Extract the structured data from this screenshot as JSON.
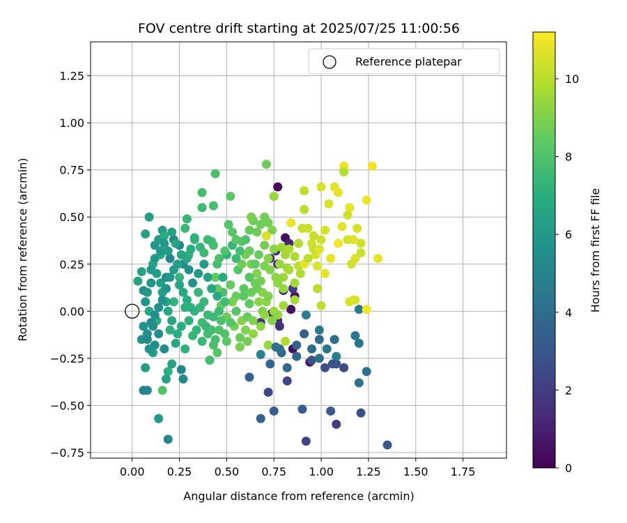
{
  "chart_data": {
    "type": "scatter",
    "title": "FOV centre drift starting at 2025/07/25 11:00:56",
    "xlabel": "Angular distance from reference (arcmin)",
    "ylabel": "Rotation from reference (arcmin)",
    "xlim": [
      -0.22,
      1.98
    ],
    "ylim": [
      -0.78,
      1.43
    ],
    "xticks": [
      "0.00",
      "0.25",
      "0.50",
      "0.75",
      "1.00",
      "1.25",
      "1.50",
      "1.75"
    ],
    "yticks": [
      "1.25",
      "1.00",
      "0.75",
      "0.50",
      "0.25",
      "0.00",
      "−0.25",
      "−0.50",
      "−0.75"
    ],
    "grid": true,
    "legend": {
      "position": "top-right",
      "entries": [
        "Reference platepar"
      ]
    },
    "colorbar": {
      "label": "Hours from first FF file",
      "colormap": "viridis",
      "range": [
        0,
        11.2
      ],
      "ticks": [
        "0",
        "2",
        "4",
        "6",
        "8",
        "10"
      ]
    },
    "reference_point": {
      "x": 0.0,
      "y": 0.0,
      "label": "Reference platepar"
    },
    "points": [
      [
        0.77,
        0.66,
        0.3
      ],
      [
        0.84,
        0.01,
        0.4
      ],
      [
        0.86,
        0.08,
        0.6
      ],
      [
        0.81,
        0.39,
        0.4
      ],
      [
        0.85,
        -0.2,
        0.5
      ],
      [
        0.94,
        -0.27,
        0.7
      ],
      [
        0.77,
        0.25,
        0.9
      ],
      [
        0.73,
        0.28,
        1.0
      ],
      [
        0.83,
        0.36,
        1.1
      ],
      [
        0.8,
        0.11,
        1.2
      ],
      [
        0.77,
        -0.05,
        1.3
      ],
      [
        0.74,
        -0.01,
        1.4
      ],
      [
        0.78,
        -0.08,
        1.5
      ],
      [
        0.68,
        -0.06,
        1.6
      ],
      [
        0.76,
        0.32,
        1.7
      ],
      [
        0.85,
        0.12,
        1.8
      ],
      [
        1.08,
        -0.6,
        2.0
      ],
      [
        0.92,
        -0.69,
        2.2
      ],
      [
        0.82,
        -0.37,
        2.3
      ],
      [
        0.72,
        -0.43,
        2.4
      ],
      [
        1.12,
        -0.3,
        2.5
      ],
      [
        1.08,
        -0.28,
        2.6
      ],
      [
        1.02,
        -0.3,
        2.7
      ],
      [
        0.95,
        -0.26,
        2.8
      ],
      [
        1.21,
        -0.54,
        2.9
      ],
      [
        1.35,
        -0.71,
        3.0
      ],
      [
        1.05,
        -0.53,
        3.1
      ],
      [
        0.9,
        -0.52,
        3.2
      ],
      [
        0.75,
        -0.53,
        3.3
      ],
      [
        0.68,
        -0.57,
        3.4
      ],
      [
        0.62,
        -0.35,
        3.5
      ],
      [
        0.73,
        -0.28,
        3.6
      ],
      [
        0.78,
        -0.2,
        3.7
      ],
      [
        0.87,
        -0.24,
        3.8
      ],
      [
        0.99,
        -0.15,
        3.9
      ],
      [
        1.07,
        -0.15,
        4.0
      ],
      [
        1.2,
        -0.38,
        4.1
      ],
      [
        1.24,
        -0.32,
        4.2
      ],
      [
        1.2,
        -0.17,
        4.3
      ],
      [
        1.18,
        -0.13,
        4.4
      ],
      [
        0.99,
        -0.1,
        4.5
      ],
      [
        0.92,
        -0.02,
        4.6
      ],
      [
        1.2,
        0.01,
        4.7
      ],
      [
        1.08,
        -0.24,
        4.8
      ],
      [
        0.68,
        -0.23,
        4.9
      ],
      [
        0.08,
        -0.42,
        5.0
      ],
      [
        0.06,
        -0.42,
        5.0
      ],
      [
        0.19,
        -0.68,
        5.1
      ],
      [
        0.26,
        -0.31,
        5.2
      ],
      [
        0.27,
        -0.36,
        5.3
      ],
      [
        0.17,
        -0.2,
        5.4
      ],
      [
        0.12,
        -0.18,
        5.5
      ],
      [
        0.08,
        -0.12,
        5.6
      ],
      [
        0.06,
        0.11,
        5.7
      ],
      [
        0.1,
        0.15,
        5.8
      ],
      [
        0.12,
        0.35,
        5.9
      ],
      [
        0.14,
        0.38,
        6.0
      ],
      [
        0.16,
        0.43,
        6.1
      ],
      [
        0.09,
        0.5,
        6.2
      ],
      [
        0.07,
        0.41,
        6.3
      ],
      [
        0.05,
        0.21,
        6.4
      ],
      [
        0.03,
        0.16,
        6.5
      ],
      [
        0.09,
        0.0,
        6.6
      ],
      [
        0.11,
        0.25,
        6.7
      ],
      [
        0.15,
        0.3,
        6.8
      ],
      [
        0.17,
        0.4,
        6.9
      ],
      [
        0.13,
        -0.05,
        7.0
      ],
      [
        0.2,
        -0.1,
        7.1
      ],
      [
        0.22,
        0.05,
        7.2
      ],
      [
        0.25,
        0.18,
        7.3
      ],
      [
        0.3,
        0.3,
        7.4
      ],
      [
        0.33,
        0.38,
        7.5
      ],
      [
        0.38,
        0.31,
        7.6
      ],
      [
        0.42,
        0.37,
        7.7
      ],
      [
        0.45,
        0.25,
        7.8
      ],
      [
        0.48,
        0.1,
        7.9
      ],
      [
        0.14,
        -0.57,
        6.0
      ],
      [
        0.07,
        -0.3,
        6.2
      ],
      [
        0.11,
        -0.22,
        6.3
      ],
      [
        0.18,
        -0.36,
        6.4
      ],
      [
        0.21,
        -0.28,
        6.6
      ],
      [
        0.16,
        -0.42,
        8.1
      ],
      [
        0.19,
        -0.32,
        7.0
      ],
      [
        0.28,
        -0.2,
        7.2
      ],
      [
        0.32,
        -0.13,
        7.4
      ],
      [
        0.37,
        -0.06,
        7.6
      ],
      [
        0.41,
        -0.26,
        7.7
      ],
      [
        0.45,
        -0.22,
        8.2
      ],
      [
        0.44,
        0.73,
        7.9
      ],
      [
        0.37,
        0.63,
        7.8
      ],
      [
        0.37,
        0.55,
        7.6
      ],
      [
        0.43,
        0.56,
        7.8
      ],
      [
        0.29,
        0.49,
        7.4
      ],
      [
        0.28,
        0.44,
        7.5
      ],
      [
        0.51,
        0.46,
        8.1
      ],
      [
        0.52,
        0.61,
        8.3
      ],
      [
        0.53,
        0.42,
        8.2
      ],
      [
        0.58,
        0.37,
        8.4
      ],
      [
        0.62,
        0.32,
        8.5
      ],
      [
        0.64,
        0.48,
        8.6
      ],
      [
        0.66,
        0.42,
        8.7
      ],
      [
        0.7,
        0.5,
        8.8
      ],
      [
        0.71,
        0.78,
        8.7
      ],
      [
        0.72,
        0.47,
        8.8
      ],
      [
        0.74,
        0.43,
        9.0
      ],
      [
        0.56,
        0.22,
        8.2
      ],
      [
        0.59,
        0.12,
        8.3
      ],
      [
        0.62,
        0.04,
        8.4
      ],
      [
        0.65,
        0.15,
        8.6
      ],
      [
        0.68,
        0.16,
        8.8
      ],
      [
        0.7,
        0.24,
        8.9
      ],
      [
        0.72,
        0.28,
        9.1
      ],
      [
        0.75,
        0.33,
        9.2
      ],
      [
        0.75,
        0.61,
        9.4
      ],
      [
        0.79,
        0.34,
        9.5
      ],
      [
        0.82,
        0.23,
        9.6
      ],
      [
        0.71,
        0.4,
        10.6
      ],
      [
        0.91,
        0.54,
        10.0
      ],
      [
        0.91,
        0.64,
        10.1
      ],
      [
        0.84,
        0.47,
        10.9
      ],
      [
        0.86,
        0.29,
        9.8
      ],
      [
        0.88,
        0.24,
        10.0
      ],
      [
        0.9,
        0.44,
        10.2
      ],
      [
        0.93,
        0.44,
        10.3
      ],
      [
        0.95,
        0.36,
        10.4
      ],
      [
        0.97,
        0.3,
        10.5
      ],
      [
        0.98,
        0.12,
        10.0
      ],
      [
        1.0,
        0.03,
        10.1
      ],
      [
        1.0,
        0.66,
        10.5
      ],
      [
        1.04,
        0.57,
        10.6
      ],
      [
        1.07,
        0.66,
        10.7
      ],
      [
        1.09,
        0.63,
        10.8
      ],
      [
        1.12,
        0.77,
        10.9
      ],
      [
        1.12,
        0.75,
        11.0
      ],
      [
        1.15,
        0.55,
        10.8
      ],
      [
        1.17,
        0.38,
        10.7
      ],
      [
        1.18,
        0.28,
        10.6
      ],
      [
        1.19,
        0.44,
        10.5
      ],
      [
        1.21,
        0.36,
        10.4
      ],
      [
        1.21,
        0.31,
        10.3
      ],
      [
        1.24,
        0.59,
        10.9
      ],
      [
        1.27,
        0.77,
        11.0
      ],
      [
        1.3,
        0.28,
        10.8
      ],
      [
        1.24,
        0.01,
        11.0
      ],
      [
        1.17,
        0.06,
        10.7
      ],
      [
        1.15,
        0.05,
        10.6
      ],
      [
        1.12,
        0.74,
        9.9
      ],
      [
        1.14,
        0.51,
        10.4
      ],
      [
        1.02,
        0.43,
        10.5
      ],
      [
        1.0,
        0.38,
        10.3
      ],
      [
        0.98,
        0.24,
        10.6
      ],
      [
        0.96,
        0.33,
        10.2
      ],
      [
        0.91,
        0.25,
        10.8
      ],
      [
        0.89,
        0.2,
        9.8
      ],
      [
        0.86,
        0.06,
        9.7
      ],
      [
        0.8,
        0.03,
        9.6
      ],
      [
        0.75,
        0.0,
        9.5
      ],
      [
        0.72,
        -0.18,
        9.4
      ],
      [
        0.68,
        -0.08,
        9.3
      ],
      [
        0.64,
        -0.12,
        9.2
      ],
      [
        0.6,
        -0.1,
        9.0
      ],
      [
        0.57,
        -0.19,
        8.9
      ],
      [
        0.54,
        -0.08,
        8.8
      ],
      [
        0.5,
        -0.03,
        8.7
      ],
      [
        0.47,
        0.03,
        8.6
      ],
      [
        0.45,
        0.12,
        8.5
      ],
      [
        0.44,
        0.18,
        8.4
      ],
      [
        0.52,
        0.14,
        8.5
      ],
      [
        0.55,
        0.08,
        8.6
      ],
      [
        0.58,
        0.25,
        8.7
      ],
      [
        0.6,
        0.3,
        8.8
      ],
      [
        0.63,
        0.25,
        8.9
      ],
      [
        0.66,
        0.2,
        9.0
      ],
      [
        0.69,
        0.1,
        9.1
      ],
      [
        0.71,
        0.05,
        9.2
      ],
      [
        0.77,
        -0.02,
        9.3
      ],
      [
        0.8,
        0.12,
        9.4
      ],
      [
        0.83,
        0.22,
        9.7
      ],
      [
        0.58,
        -0.05,
        9.1
      ],
      [
        0.53,
        0.05,
        8.9
      ],
      [
        0.49,
        -0.12,
        8.0
      ],
      [
        0.47,
        -0.05,
        7.9
      ],
      [
        0.44,
        -0.15,
        7.8
      ],
      [
        0.42,
        -0.1,
        7.7
      ],
      [
        0.4,
        -0.02,
        7.6
      ],
      [
        0.38,
        0.05,
        7.5
      ],
      [
        0.35,
        0.1,
        7.4
      ],
      [
        0.33,
        0.0,
        7.3
      ],
      [
        0.3,
        -0.05,
        7.2
      ],
      [
        0.28,
        0.02,
        7.1
      ],
      [
        0.26,
        -0.08,
        7.0
      ],
      [
        0.24,
        -0.12,
        6.9
      ],
      [
        0.23,
        -0.17,
        6.8
      ],
      [
        0.21,
        -0.05,
        6.7
      ],
      [
        0.19,
        0.0,
        6.6
      ],
      [
        0.18,
        0.05,
        6.5
      ],
      [
        0.16,
        0.1,
        6.4
      ],
      [
        0.15,
        0.15,
        6.3
      ],
      [
        0.13,
        0.2,
        6.2
      ],
      [
        0.12,
        0.28,
        6.1
      ],
      [
        0.1,
        0.22,
        6.0
      ],
      [
        0.08,
        0.1,
        5.9
      ],
      [
        0.07,
        0.05,
        5.8
      ],
      [
        0.06,
        -0.08,
        5.7
      ],
      [
        0.05,
        -0.15,
        5.6
      ],
      [
        0.09,
        -0.2,
        5.5
      ],
      [
        0.11,
        -0.08,
        5.4
      ],
      [
        0.14,
        -0.12,
        5.3
      ],
      [
        0.18,
        0.18,
        5.2
      ],
      [
        0.2,
        0.28,
        5.1
      ],
      [
        0.22,
        0.38,
        5.0
      ],
      [
        0.25,
        0.35,
        5.2
      ],
      [
        0.27,
        0.25,
        5.4
      ],
      [
        0.3,
        0.22,
        5.6
      ],
      [
        0.32,
        0.15,
        5.8
      ],
      [
        0.35,
        0.2,
        6.0
      ],
      [
        0.38,
        0.25,
        6.2
      ],
      [
        0.4,
        0.18,
        6.4
      ],
      [
        0.42,
        0.12,
        6.6
      ],
      [
        0.45,
        0.08,
        6.8
      ],
      [
        0.48,
        0.18,
        7.0
      ],
      [
        0.5,
        0.3,
        7.2
      ],
      [
        0.53,
        0.35,
        7.4
      ],
      [
        0.55,
        0.28,
        7.6
      ],
      [
        0.57,
        0.32,
        7.8
      ],
      [
        0.6,
        0.38,
        8.0
      ],
      [
        0.62,
        0.18,
        8.2
      ],
      [
        0.65,
        0.25,
        8.4
      ],
      [
        0.67,
        0.3,
        8.6
      ],
      [
        0.7,
        0.35,
        8.8
      ],
      [
        0.73,
        0.22,
        9.0
      ],
      [
        0.76,
        0.18,
        9.2
      ],
      [
        0.78,
        0.25,
        9.4
      ],
      [
        0.81,
        0.3,
        9.6
      ],
      [
        0.83,
        0.33,
        9.8
      ],
      [
        0.36,
        0.02,
        7.3
      ],
      [
        0.39,
        -0.08,
        7.4
      ],
      [
        0.43,
        -0.03,
        7.5
      ],
      [
        0.46,
        0.0,
        7.6
      ],
      [
        0.49,
        0.05,
        7.7
      ],
      [
        0.52,
        -0.06,
        8.1
      ],
      [
        0.55,
        0.0,
        8.2
      ],
      [
        0.59,
        0.08,
        8.3
      ],
      [
        0.61,
        -0.03,
        8.5
      ],
      [
        0.63,
        0.1,
        8.6
      ],
      [
        0.66,
        0.12,
        8.7
      ],
      [
        0.69,
        0.0,
        8.9
      ],
      [
        0.72,
        0.08,
        9.0
      ],
      [
        0.74,
        -0.05,
        9.1
      ],
      [
        0.77,
        0.15,
        9.3
      ],
      [
        0.8,
        0.18,
        9.5
      ],
      [
        0.86,
        0.15,
        9.6
      ],
      [
        0.88,
        0.36,
        9.9
      ],
      [
        0.93,
        0.28,
        10.1
      ],
      [
        0.96,
        0.4,
        10.3
      ],
      [
        0.99,
        0.33,
        10.6
      ],
      [
        1.02,
        0.2,
        10.8
      ],
      [
        1.05,
        0.28,
        10.9
      ],
      [
        1.09,
        0.36,
        11.0
      ],
      [
        1.11,
        0.45,
        10.7
      ],
      [
        1.14,
        0.38,
        10.5
      ],
      [
        1.16,
        0.25,
        10.4
      ],
      [
        1.18,
        0.06,
        10.6
      ],
      [
        0.81,
        -0.16,
        9.8
      ],
      [
        0.76,
        -0.19,
        4.2
      ],
      [
        0.79,
        -0.22,
        4.0
      ],
      [
        0.82,
        -0.3,
        3.8
      ],
      [
        0.87,
        -0.18,
        3.6
      ],
      [
        0.91,
        -0.12,
        3.4
      ],
      [
        0.95,
        -0.2,
        3.9
      ],
      [
        0.99,
        -0.25,
        4.1
      ],
      [
        1.03,
        -0.2,
        4.3
      ],
      [
        1.06,
        -0.28,
        2.9
      ],
      [
        0.63,
        0.5,
        8.9
      ],
      [
        0.68,
        0.46,
        8.7
      ],
      [
        0.62,
        0.43,
        8.5
      ],
      [
        0.55,
        0.38,
        8.3
      ],
      [
        0.49,
        0.32,
        8.1
      ],
      [
        0.46,
        0.28,
        7.9
      ],
      [
        0.43,
        0.35,
        7.8
      ],
      [
        0.4,
        0.38,
        7.6
      ],
      [
        0.36,
        0.34,
        7.3
      ],
      [
        0.33,
        0.39,
        7.1
      ],
      [
        0.31,
        0.33,
        6.9
      ],
      [
        0.29,
        0.28,
        6.7
      ],
      [
        0.26,
        0.3,
        6.5
      ],
      [
        0.24,
        0.25,
        6.3
      ],
      [
        0.22,
        0.22,
        6.1
      ],
      [
        0.2,
        0.18,
        5.9
      ],
      [
        0.18,
        0.12,
        5.8
      ],
      [
        0.16,
        0.06,
        5.7
      ],
      [
        0.14,
        0.02,
        5.6
      ],
      [
        0.12,
        -0.02,
        5.5
      ],
      [
        0.1,
        -0.06,
        5.4
      ],
      [
        0.08,
        -0.15,
        5.3
      ],
      [
        0.15,
        0.32,
        5.9
      ],
      [
        0.17,
        0.36,
        6.0
      ],
      [
        0.19,
        0.32,
        6.2
      ],
      [
        0.21,
        0.42,
        6.4
      ],
      [
        0.23,
        0.36,
        6.5
      ],
      [
        0.25,
        0.14,
        6.6
      ],
      [
        0.27,
        0.1,
        6.8
      ],
      [
        0.29,
        0.06,
        7.0
      ],
      [
        0.31,
        0.02,
        7.1
      ],
      [
        0.34,
        -0.1,
        7.3
      ],
      [
        0.37,
        -0.16,
        7.5
      ],
      [
        0.4,
        -0.12,
        7.7
      ],
      [
        0.43,
        -0.18,
        7.9
      ],
      [
        0.46,
        -0.1,
        8.0
      ],
      [
        0.5,
        -0.16,
        8.3
      ],
      [
        0.57,
        -0.14,
        8.6
      ],
      [
        0.61,
        -0.16,
        8.8
      ],
      [
        0.64,
        -0.05,
        9.0
      ],
      [
        0.67,
        0.05,
        9.2
      ],
      [
        0.7,
        -0.02,
        9.4
      ]
    ]
  }
}
